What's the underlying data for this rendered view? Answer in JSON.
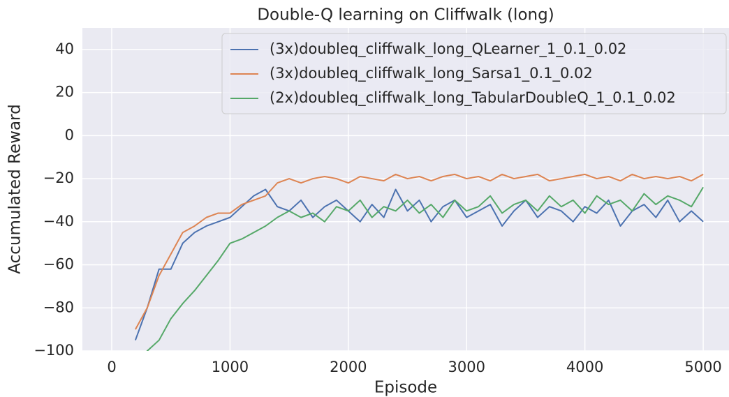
{
  "chart_data": {
    "type": "line",
    "title": "Double-Q learning on Cliffwalk (long)",
    "xlabel": "Episode",
    "ylabel": "Accumulated Reward",
    "x": [
      200,
      300,
      400,
      500,
      600,
      700,
      800,
      900,
      1000,
      1100,
      1200,
      1300,
      1400,
      1500,
      1600,
      1700,
      1800,
      1900,
      2000,
      2100,
      2200,
      2300,
      2400,
      2500,
      2600,
      2700,
      2800,
      2900,
      3000,
      3100,
      3200,
      3300,
      3400,
      3500,
      3600,
      3700,
      3800,
      3900,
      4000,
      4100,
      4200,
      4300,
      4400,
      4500,
      4600,
      4700,
      4800,
      4900,
      5000
    ],
    "series": [
      {
        "name": "(3x)doubleq_cliffwalk_long_QLearner_1_0.1_0.02",
        "color": "#4c72b0",
        "values": [
          -95,
          -80,
          -62,
          -62,
          -50,
          -45,
          -42,
          -40,
          -38,
          -33,
          -28,
          -25,
          -33,
          -35,
          -30,
          -38,
          -33,
          -30,
          -35,
          -40,
          -32,
          -38,
          -25,
          -35,
          -30,
          -40,
          -33,
          -30,
          -38,
          -35,
          -32,
          -42,
          -35,
          -30,
          -38,
          -33,
          -35,
          -40,
          -33,
          -36,
          -30,
          -42,
          -35,
          -32,
          -38,
          -30,
          -40,
          -35,
          -40
        ]
      },
      {
        "name": "(3x)doubleq_cliffwalk_long_Sarsa1_0.1_0.02",
        "color": "#dd8452",
        "values": [
          -90,
          -80,
          -65,
          -55,
          -45,
          -42,
          -38,
          -36,
          -36,
          -32,
          -30,
          -28,
          -22,
          -20,
          -22,
          -20,
          -19,
          -20,
          -22,
          -19,
          -20,
          -21,
          -18,
          -20,
          -19,
          -21,
          -19,
          -18,
          -20,
          -19,
          -21,
          -18,
          -20,
          -19,
          -18,
          -21,
          -20,
          -19,
          -18,
          -20,
          -19,
          -21,
          -18,
          -20,
          -19,
          -20,
          -19,
          -21,
          -18
        ]
      },
      {
        "name": "(2x)doubleq_cliffwalk_long_TabularDoubleQ_1_0.1_0.02",
        "color": "#55a868",
        "values": [
          -110,
          -100,
          -95,
          -85,
          -78,
          -72,
          -65,
          -58,
          -50,
          -48,
          -45,
          -42,
          -38,
          -35,
          -38,
          -36,
          -40,
          -33,
          -35,
          -30,
          -38,
          -33,
          -35,
          -30,
          -36,
          -32,
          -38,
          -30,
          -35,
          -33,
          -28,
          -36,
          -32,
          -30,
          -35,
          -28,
          -33,
          -30,
          -36,
          -28,
          -32,
          -30,
          -35,
          -27,
          -32,
          -28,
          -30,
          -33,
          -24
        ]
      }
    ],
    "xlim": [
      -248,
      5218
    ],
    "ylim": [
      -100,
      50
    ],
    "xticks": [
      0,
      1000,
      2000,
      3000,
      4000,
      5000
    ],
    "yticks": [
      {
        "value": -100,
        "label": "−100"
      },
      {
        "value": -80,
        "label": "−80"
      },
      {
        "value": -60,
        "label": "−60"
      },
      {
        "value": -40,
        "label": "−40"
      },
      {
        "value": -20,
        "label": "−20"
      },
      0,
      20,
      40
    ],
    "grid": true,
    "legend": "upper right"
  }
}
